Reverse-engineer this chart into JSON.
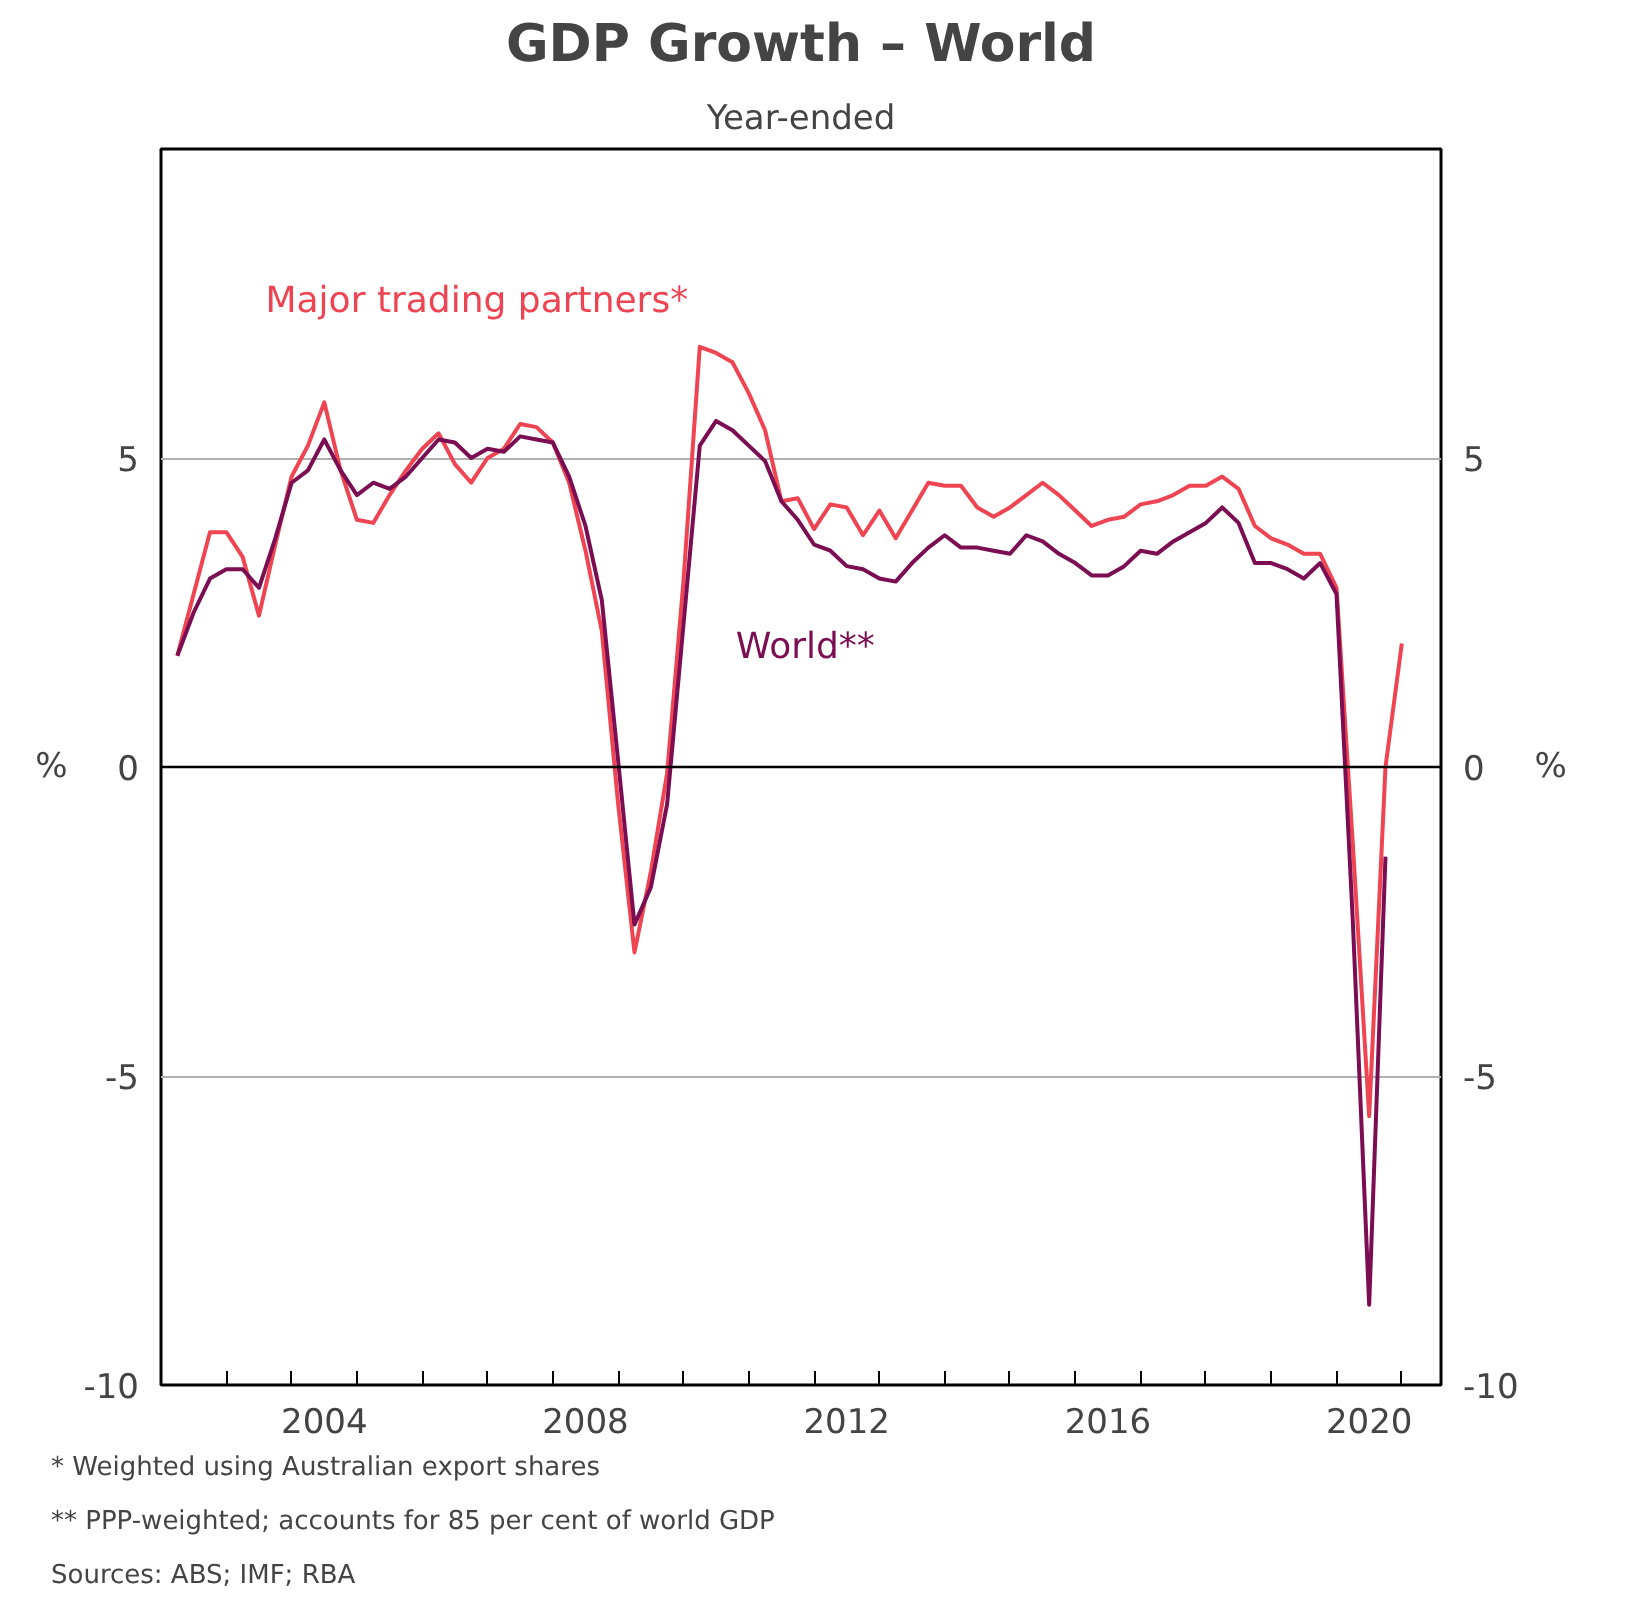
{
  "chart_data": {
    "type": "line",
    "title": "GDP Growth – World",
    "subtitle": "Year-ended",
    "ylabel": "%",
    "y2label": "%",
    "x": [
      2002.25,
      2002.5,
      2002.75,
      2003,
      2003.25,
      2003.5,
      2003.75,
      2004,
      2004.25,
      2004.5,
      2004.75,
      2005,
      2005.25,
      2005.5,
      2005.75,
      2006,
      2006.25,
      2006.5,
      2006.75,
      2007,
      2007.25,
      2007.5,
      2007.75,
      2008,
      2008.25,
      2008.5,
      2008.75,
      2009,
      2009.25,
      2009.5,
      2009.75,
      2010,
      2010.25,
      2010.5,
      2010.75,
      2011,
      2011.25,
      2011.5,
      2011.75,
      2012,
      2012.25,
      2012.5,
      2012.75,
      2013,
      2013.25,
      2013.5,
      2013.75,
      2014,
      2014.25,
      2014.5,
      2014.75,
      2015,
      2015.25,
      2015.5,
      2015.75,
      2016,
      2016.25,
      2016.5,
      2016.75,
      2017,
      2017.25,
      2017.5,
      2017.75,
      2018,
      2018.25,
      2018.5,
      2018.75,
      2019,
      2019.25,
      2019.5,
      2019.75,
      2020,
      2020.25,
      2020.5,
      2020.75,
      2021
    ],
    "series": [
      {
        "name": "Major trading partners*",
        "color": "#ef4452",
        "values": [
          1.8,
          2.8,
          3.8,
          3.8,
          3.4,
          2.45,
          3.6,
          4.7,
          5.2,
          5.9,
          4.8,
          4.0,
          3.95,
          4.4,
          4.8,
          5.15,
          5.4,
          4.9,
          4.6,
          5.0,
          5.15,
          5.55,
          5.5,
          5.25,
          4.6,
          3.5,
          2.2,
          -0.6,
          -3.0,
          -1.7,
          -0.1,
          3.0,
          6.8,
          6.7,
          6.55,
          6.05,
          5.45,
          4.3,
          4.35,
          3.85,
          4.25,
          4.2,
          3.75,
          4.15,
          3.7,
          4.15,
          4.6,
          4.55,
          4.55,
          4.2,
          4.05,
          4.2,
          4.4,
          4.6,
          4.4,
          4.15,
          3.9,
          4.0,
          4.05,
          4.25,
          4.3,
          4.4,
          4.55,
          4.55,
          4.7,
          4.5,
          3.9,
          3.7,
          3.6,
          3.45,
          3.45,
          2.9,
          -1.25,
          -5.65,
          0.0,
          2.0
        ]
      },
      {
        "name": "World**",
        "color": "#7b0d52",
        "values": [
          1.8,
          2.5,
          3.05,
          3.2,
          3.2,
          2.9,
          3.7,
          4.6,
          4.8,
          5.3,
          4.8,
          4.4,
          4.6,
          4.5,
          4.7,
          5.0,
          5.3,
          5.25,
          5.0,
          5.15,
          5.1,
          5.35,
          5.3,
          5.25,
          4.7,
          3.9,
          2.7,
          0.1,
          -2.55,
          -1.95,
          -0.6,
          2.3,
          5.2,
          5.6,
          5.45,
          5.2,
          4.95,
          4.3,
          4.0,
          3.6,
          3.5,
          3.25,
          3.2,
          3.05,
          3.0,
          3.3,
          3.55,
          3.75,
          3.55,
          3.55,
          3.5,
          3.45,
          3.75,
          3.65,
          3.45,
          3.3,
          3.1,
          3.1,
          3.25,
          3.5,
          3.45,
          3.65,
          3.8,
          3.95,
          4.2,
          3.95,
          3.3,
          3.3,
          3.2,
          3.05,
          3.3,
          2.8,
          -2.5,
          -8.7,
          -1.45,
          null
        ]
      }
    ],
    "xlim": [
      2002,
      2021.6
    ],
    "xticks": [
      {
        "value": 2003,
        "label": null
      },
      {
        "value": 2004,
        "label": null
      },
      {
        "value": 2005,
        "label": null
      },
      {
        "value": 2006,
        "label": null
      },
      {
        "value": 2007,
        "label": null
      },
      {
        "value": 2008,
        "label": null
      },
      {
        "value": 2009,
        "label": null
      },
      {
        "value": 2010,
        "label": null
      },
      {
        "value": 2011,
        "label": null
      },
      {
        "value": 2012,
        "label": null
      },
      {
        "value": 2013,
        "label": null
      },
      {
        "value": 2014,
        "label": null
      },
      {
        "value": 2015,
        "label": null
      },
      {
        "value": 2016,
        "label": null
      },
      {
        "value": 2017,
        "label": null
      },
      {
        "value": 2018,
        "label": null
      },
      {
        "value": 2019,
        "label": null
      },
      {
        "value": 2020,
        "label": null
      },
      {
        "value": 2021,
        "label": null
      },
      {
        "value": 2004.5,
        "label": "2004"
      },
      {
        "value": 2008.5,
        "label": "2008"
      },
      {
        "value": 2012.5,
        "label": "2012"
      },
      {
        "value": 2016.5,
        "label": "2016"
      },
      {
        "value": 2020.5,
        "label": "2020"
      }
    ],
    "ylim": [
      -10,
      10
    ],
    "yticks": [
      -10,
      -5,
      0,
      5
    ],
    "y2lim": [
      -10,
      10
    ],
    "y2ticks": [
      -10,
      -5,
      0,
      5
    ],
    "grid": "y",
    "legend": false,
    "line_style": "solid",
    "ref_lines": [
      {
        "axis": "y",
        "value": 0,
        "color": "#000000"
      }
    ],
    "annotations": [
      "*    Weighted using Australian export shares",
      "**  PPP-weighted; accounts for 85 per cent of world GDP",
      "Sources: ABS; IMF; RBA"
    ]
  }
}
